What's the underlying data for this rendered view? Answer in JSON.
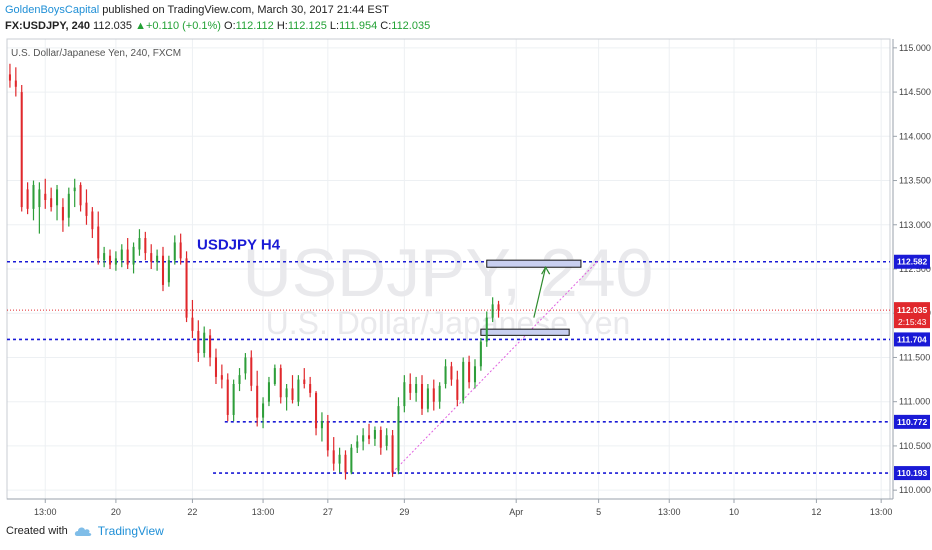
{
  "header": {
    "publisher": "GoldenBoysCapital",
    "published_text": "published on TradingView.com, March 30, 2017 21:44 EST",
    "symbol_line": "FX:USDJPY, 240",
    "last": "112.035",
    "change": "+0.110 (+0.1%)",
    "o_label": "O:",
    "o": "112.112",
    "h_label": "H:",
    "h": "112.125",
    "l_label": "L:",
    "l": "111.954",
    "c_label": "C:",
    "c": "112.035"
  },
  "footer": {
    "created_with": "Created with",
    "brand": "TradingView"
  },
  "colors": {
    "up": "#2e9e3a",
    "down": "#e0282c",
    "level": "#1a1ad6",
    "trend": "#e060e0",
    "last_price": "#e0282c",
    "arrow": "#2e8b2e"
  },
  "chart_data": {
    "type": "candlestick",
    "title_label": "U.S. Dollar/Japanese Yen, 240, FXCM",
    "annotation": "USDJPY H4",
    "watermark_symbol": "USDJPY, 240",
    "watermark_name": "U.S. Dollar/Japanese Yen",
    "ylim": [
      109.9,
      115.1
    ],
    "y_ticks": [
      110.0,
      110.5,
      111.0,
      111.5,
      112.0,
      112.5,
      113.0,
      113.5,
      114.0,
      114.5,
      115.0
    ],
    "y_tick_labels": [
      "110.000",
      "110.500",
      "111.000",
      "111.500",
      "112.000",
      "112.500",
      "113.000",
      "113.500",
      "114.000",
      "114.500",
      "115.000"
    ],
    "x_ticks": [
      {
        "bar": 6,
        "label": "13:00"
      },
      {
        "bar": 18,
        "label": "20"
      },
      {
        "bar": 31,
        "label": "22"
      },
      {
        "bar": 43,
        "label": "13:00"
      },
      {
        "bar": 54,
        "label": "27"
      },
      {
        "bar": 67,
        "label": "29"
      },
      {
        "bar": 86,
        "label": "Apr"
      },
      {
        "bar": 100,
        "label": "5"
      },
      {
        "bar": 112,
        "label": "13:00"
      },
      {
        "bar": 123,
        "label": "10"
      },
      {
        "bar": 137,
        "label": "12"
      },
      {
        "bar": 148,
        "label": "13:00"
      }
    ],
    "candles": [
      [
        114.7,
        114.82,
        114.55,
        114.63
      ],
      [
        114.63,
        114.78,
        114.45,
        114.56
      ],
      [
        114.5,
        114.58,
        113.15,
        113.2
      ],
      [
        113.4,
        113.48,
        113.12,
        113.18
      ],
      [
        113.18,
        113.5,
        113.05,
        113.45
      ],
      [
        113.2,
        113.48,
        112.9,
        113.4
      ],
      [
        113.35,
        113.52,
        113.18,
        113.28
      ],
      [
        113.3,
        113.42,
        113.15,
        113.2
      ],
      [
        113.22,
        113.45,
        113.05,
        113.4
      ],
      [
        113.2,
        113.3,
        112.92,
        113.05
      ],
      [
        113.08,
        113.42,
        112.98,
        113.35
      ],
      [
        113.38,
        113.52,
        113.2,
        113.42
      ],
      [
        113.45,
        113.48,
        113.15,
        113.22
      ],
      [
        113.25,
        113.4,
        113.0,
        113.1
      ],
      [
        113.15,
        113.2,
        112.85,
        112.95
      ],
      [
        112.98,
        113.15,
        112.55,
        112.62
      ],
      [
        112.6,
        112.75,
        112.52,
        112.68
      ],
      [
        112.65,
        112.72,
        112.5,
        112.55
      ],
      [
        112.55,
        112.7,
        112.48,
        112.62
      ],
      [
        112.6,
        112.78,
        112.52,
        112.72
      ],
      [
        112.72,
        112.85,
        112.5,
        112.55
      ],
      [
        112.55,
        112.8,
        112.45,
        112.75
      ],
      [
        112.72,
        112.95,
        112.65,
        112.85
      ],
      [
        112.85,
        112.92,
        112.6,
        112.68
      ],
      [
        112.68,
        112.78,
        112.5,
        112.58
      ],
      [
        112.58,
        112.72,
        112.48,
        112.65
      ],
      [
        112.65,
        112.75,
        112.25,
        112.32
      ],
      [
        112.35,
        112.65,
        112.3,
        112.6
      ],
      [
        112.6,
        112.88,
        112.55,
        112.8
      ],
      [
        112.8,
        112.9,
        112.55,
        112.62
      ],
      [
        112.62,
        112.7,
        111.9,
        111.95
      ],
      [
        111.95,
        112.15,
        111.72,
        111.8
      ],
      [
        111.8,
        111.92,
        111.45,
        111.55
      ],
      [
        111.55,
        111.85,
        111.5,
        111.78
      ],
      [
        111.75,
        111.82,
        111.4,
        111.5
      ],
      [
        111.5,
        111.6,
        111.2,
        111.28
      ],
      [
        111.3,
        111.42,
        111.15,
        111.25
      ],
      [
        111.25,
        111.32,
        110.78,
        110.85
      ],
      [
        110.85,
        111.25,
        110.78,
        111.2
      ],
      [
        111.2,
        111.38,
        111.12,
        111.3
      ],
      [
        111.32,
        111.55,
        111.25,
        111.5
      ],
      [
        111.5,
        111.58,
        111.12,
        111.18
      ],
      [
        111.18,
        111.35,
        110.72,
        110.82
      ],
      [
        110.82,
        111.05,
        110.7,
        110.98
      ],
      [
        111.0,
        111.28,
        110.95,
        111.22
      ],
      [
        111.2,
        111.42,
        111.18,
        111.38
      ],
      [
        111.38,
        111.42,
        110.98,
        111.05
      ],
      [
        111.05,
        111.2,
        110.9,
        111.15
      ],
      [
        111.15,
        111.3,
        110.98,
        111.02
      ],
      [
        111.0,
        111.3,
        110.95,
        111.25
      ],
      [
        111.25,
        111.38,
        111.15,
        111.2
      ],
      [
        111.2,
        111.28,
        111.05,
        111.1
      ],
      [
        111.1,
        111.12,
        110.62,
        110.7
      ],
      [
        110.7,
        110.88,
        110.55,
        110.78
      ],
      [
        110.78,
        110.85,
        110.38,
        110.45
      ],
      [
        110.45,
        110.6,
        110.22,
        110.3
      ],
      [
        110.3,
        110.48,
        110.2,
        110.4
      ],
      [
        110.4,
        110.45,
        110.12,
        110.2
      ],
      [
        110.2,
        110.52,
        110.18,
        110.48
      ],
      [
        110.48,
        110.62,
        110.42,
        110.55
      ],
      [
        110.55,
        110.7,
        110.45,
        110.62
      ],
      [
        110.62,
        110.75,
        110.52,
        110.58
      ],
      [
        110.58,
        110.72,
        110.5,
        110.68
      ],
      [
        110.68,
        110.72,
        110.4,
        110.48
      ],
      [
        110.5,
        110.7,
        110.45,
        110.62
      ],
      [
        110.62,
        110.68,
        110.15,
        110.2
      ],
      [
        110.22,
        111.05,
        110.18,
        110.95
      ],
      [
        110.95,
        111.3,
        110.88,
        111.22
      ],
      [
        111.2,
        111.32,
        111.02,
        111.1
      ],
      [
        111.1,
        111.28,
        111.0,
        111.2
      ],
      [
        111.2,
        111.3,
        110.85,
        110.92
      ],
      [
        110.92,
        111.2,
        110.88,
        111.15
      ],
      [
        111.15,
        111.25,
        110.9,
        111.0
      ],
      [
        111.0,
        111.22,
        110.92,
        111.18
      ],
      [
        111.2,
        111.48,
        111.15,
        111.4
      ],
      [
        111.4,
        111.45,
        111.18,
        111.25
      ],
      [
        111.25,
        111.35,
        110.95,
        111.02
      ],
      [
        111.02,
        111.5,
        110.98,
        111.45
      ],
      [
        111.45,
        111.52,
        111.15,
        111.22
      ],
      [
        111.22,
        111.48,
        111.15,
        111.4
      ],
      [
        111.4,
        111.72,
        111.35,
        111.68
      ],
      [
        111.68,
        112.02,
        111.62,
        111.95
      ],
      [
        111.95,
        112.18,
        111.9,
        112.1
      ],
      [
        112.1,
        112.14,
        111.95,
        112.04
      ]
    ],
    "levels": [
      {
        "price": 112.582,
        "label": "112.582",
        "from_bar": 0
      },
      {
        "price": 111.704,
        "label": "111.704",
        "from_bar": 0
      },
      {
        "price": 110.772,
        "label": "110.772",
        "from_bar": 37
      },
      {
        "price": 110.193,
        "label": "110.193",
        "from_bar": 35
      }
    ],
    "last_price": {
      "price": 112.035,
      "label": "112.035",
      "countdown": "2:15:43"
    },
    "trendline": {
      "from": [
        65,
        110.2
      ],
      "to": [
        100,
        112.6
      ]
    },
    "zones": [
      {
        "from_bar": 81,
        "to_bar": 97,
        "top": 112.6,
        "bottom": 112.52
      },
      {
        "from_bar": 80,
        "to_bar": 95,
        "top": 111.82,
        "bottom": 111.75
      }
    ],
    "arrow": {
      "from": [
        89,
        111.95
      ],
      "to": [
        91,
        112.52
      ]
    },
    "bars_visible": 150
  }
}
